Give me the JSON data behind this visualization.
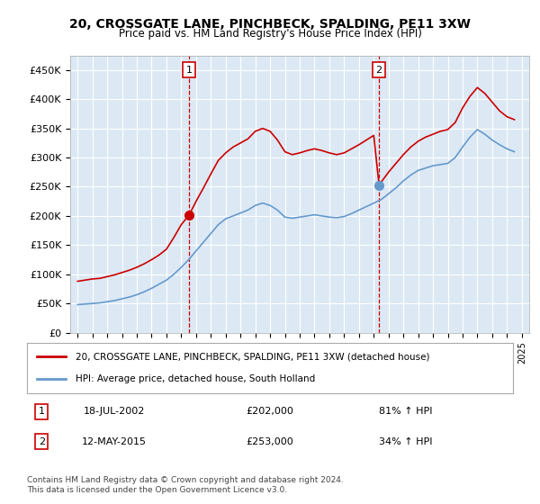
{
  "title": "20, CROSSGATE LANE, PINCHBECK, SPALDING, PE11 3XW",
  "subtitle": "Price paid vs. HM Land Registry's House Price Index (HPI)",
  "bg_color": "#dce9f5",
  "plot_bg_color": "#dce9f5",
  "fig_bg_color": "#ffffff",
  "legend_label_red": "20, CROSSGATE LANE, PINCHBECK, SPALDING, PE11 3XW (detached house)",
  "legend_label_blue": "HPI: Average price, detached house, South Holland",
  "footnote": "Contains HM Land Registry data © Crown copyright and database right 2024.\nThis data is licensed under the Open Government Licence v3.0.",
  "transaction1_date": "18-JUL-2002",
  "transaction1_price": "£202,000",
  "transaction1_hpi": "81% ↑ HPI",
  "transaction2_date": "12-MAY-2015",
  "transaction2_price": "£253,000",
  "transaction2_hpi": "34% ↑ HPI",
  "marker1_x": 2002.54,
  "marker1_y": 202000,
  "marker2_x": 2015.36,
  "marker2_y": 253000,
  "ylim": [
    0,
    475000
  ],
  "xlim": [
    1994.5,
    2025.5
  ],
  "red_color": "#cc0000",
  "blue_color": "#6699cc",
  "red_x": [
    1995.0,
    1995.5,
    1996.0,
    1996.5,
    1997.0,
    1997.5,
    1998.0,
    1998.5,
    1999.0,
    1999.5,
    2000.0,
    2000.5,
    2001.0,
    2001.5,
    2002.0,
    2002.54,
    2003.0,
    2003.5,
    2004.0,
    2004.5,
    2005.0,
    2005.5,
    2006.0,
    2006.5,
    2007.0,
    2007.5,
    2008.0,
    2008.5,
    2009.0,
    2009.5,
    2010.0,
    2010.5,
    2011.0,
    2011.5,
    2012.0,
    2012.5,
    2013.0,
    2013.5,
    2014.0,
    2014.5,
    2015.0,
    2015.36,
    2016.0,
    2016.5,
    2017.0,
    2017.5,
    2018.0,
    2018.5,
    2019.0,
    2019.5,
    2020.0,
    2020.5,
    2021.0,
    2021.5,
    2022.0,
    2022.5,
    2023.0,
    2023.5,
    2024.0,
    2024.5
  ],
  "red_y": [
    88000,
    90000,
    92000,
    93000,
    96000,
    99000,
    103000,
    107000,
    112000,
    118000,
    125000,
    133000,
    143000,
    163000,
    185000,
    202000,
    225000,
    248000,
    272000,
    295000,
    308000,
    318000,
    325000,
    332000,
    345000,
    350000,
    345000,
    330000,
    310000,
    305000,
    308000,
    312000,
    315000,
    312000,
    308000,
    305000,
    308000,
    315000,
    322000,
    330000,
    338000,
    253000,
    275000,
    290000,
    305000,
    318000,
    328000,
    335000,
    340000,
    345000,
    348000,
    360000,
    385000,
    405000,
    420000,
    410000,
    395000,
    380000,
    370000,
    365000
  ],
  "blue_x": [
    1995.0,
    1995.5,
    1996.0,
    1996.5,
    1997.0,
    1997.5,
    1998.0,
    1998.5,
    1999.0,
    1999.5,
    2000.0,
    2000.5,
    2001.0,
    2001.5,
    2002.0,
    2002.5,
    2003.0,
    2003.5,
    2004.0,
    2004.5,
    2005.0,
    2005.5,
    2006.0,
    2006.5,
    2007.0,
    2007.5,
    2008.0,
    2008.5,
    2009.0,
    2009.5,
    2010.0,
    2010.5,
    2011.0,
    2011.5,
    2012.0,
    2012.5,
    2013.0,
    2013.5,
    2014.0,
    2014.5,
    2015.0,
    2015.5,
    2016.0,
    2016.5,
    2017.0,
    2017.5,
    2018.0,
    2018.5,
    2019.0,
    2019.5,
    2020.0,
    2020.5,
    2021.0,
    2021.5,
    2022.0,
    2022.5,
    2023.0,
    2023.5,
    2024.0,
    2024.5
  ],
  "blue_y": [
    48000,
    49000,
    50000,
    51000,
    53000,
    55000,
    58000,
    61000,
    65000,
    70000,
    76000,
    83000,
    90000,
    100000,
    112000,
    125000,
    140000,
    155000,
    170000,
    185000,
    195000,
    200000,
    205000,
    210000,
    218000,
    222000,
    218000,
    210000,
    198000,
    196000,
    198000,
    200000,
    202000,
    200000,
    198000,
    197000,
    199000,
    204000,
    210000,
    216000,
    222000,
    228000,
    238000,
    248000,
    260000,
    270000,
    278000,
    282000,
    286000,
    288000,
    290000,
    300000,
    318000,
    335000,
    348000,
    340000,
    330000,
    322000,
    315000,
    310000
  ]
}
